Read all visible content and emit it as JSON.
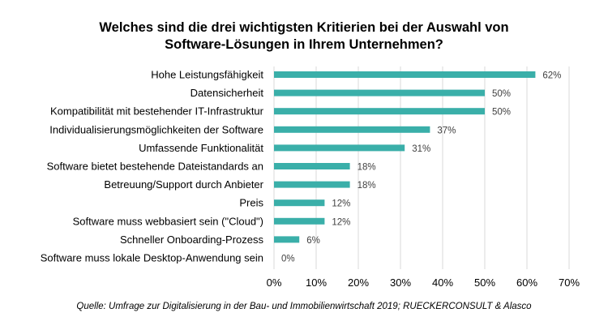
{
  "chart_data": {
    "type": "bar",
    "orientation": "horizontal",
    "title": [
      "Welches sind die drei wichtigsten Kritierien bei der Auswahl von",
      "Software-Lösungen in Ihrem Unternehmen?"
    ],
    "categories": [
      "Hohe Leistungsfähigkeit",
      "Datensicherheit",
      "Kompatibilität mit bestehender IT-Infrastruktur",
      "Individualisierungsmöglichkeiten der Software",
      "Umfassende Funktionalität",
      "Software bietet bestehende Dateistandards an",
      "Betreuung/Support durch Anbieter",
      "Preis",
      "Software muss webbasiert sein (\"Cloud\")",
      "Schneller Onboarding-Prozess",
      "Software muss lokale Desktop-Anwendung sein"
    ],
    "values": [
      62,
      50,
      50,
      37,
      31,
      18,
      18,
      12,
      12,
      6,
      0
    ],
    "value_labels": [
      "62%",
      "50%",
      "50%",
      "37%",
      "31%",
      "18%",
      "18%",
      "12%",
      "12%",
      "6%",
      "0%"
    ],
    "xlim": [
      0,
      70
    ],
    "x_ticks": [
      0,
      10,
      20,
      30,
      40,
      50,
      60,
      70
    ],
    "x_tick_labels": [
      "0%",
      "10%",
      "20%",
      "30%",
      "40%",
      "50%",
      "60%",
      "70%"
    ],
    "grid": "vertical",
    "bar_color": "#3aafa9",
    "gridline_color": "#d9d9d9",
    "source": "Quelle: Umfrage zur Digitalisierung in der Bau- und Immobilienwirtschaft 2019; RUECKERCONSULT & Alasco"
  }
}
